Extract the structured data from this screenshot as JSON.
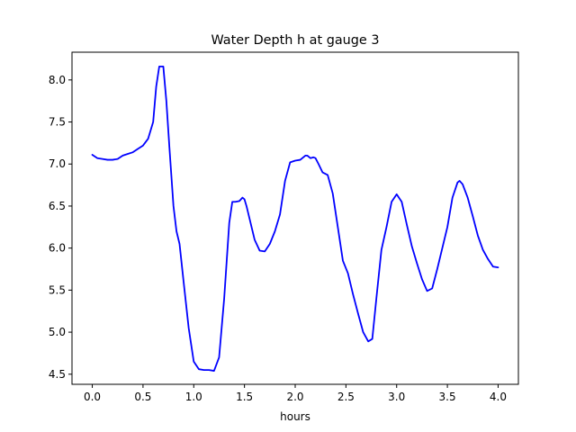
{
  "chart_data": {
    "type": "line",
    "title": "Water Depth h at gauge 3",
    "xlabel": "hours",
    "ylabel": "",
    "xlim": [
      -0.2,
      4.2
    ],
    "ylim": [
      4.38,
      8.33
    ],
    "xticks": [
      0.0,
      0.5,
      1.0,
      1.5,
      2.0,
      2.5,
      3.0,
      3.5,
      4.0
    ],
    "xtick_labels": [
      "0.0",
      "0.5",
      "1.0",
      "1.5",
      "2.0",
      "2.5",
      "3.0",
      "3.5",
      "4.0"
    ],
    "yticks": [
      4.5,
      5.0,
      5.5,
      6.0,
      6.5,
      7.0,
      7.5,
      8.0
    ],
    "ytick_labels": [
      "4.5",
      "5.0",
      "5.5",
      "6.0",
      "6.5",
      "7.0",
      "7.5",
      "8.0"
    ],
    "grid": false,
    "series": [
      {
        "color": "#0000ff",
        "x": [
          0.0,
          0.05,
          0.1,
          0.15,
          0.2,
          0.25,
          0.3,
          0.35,
          0.4,
          0.45,
          0.5,
          0.55,
          0.6,
          0.63,
          0.66,
          0.7,
          0.73,
          0.76,
          0.8,
          0.83,
          0.86,
          0.9,
          0.95,
          1.0,
          1.05,
          1.1,
          1.15,
          1.2,
          1.25,
          1.3,
          1.35,
          1.38,
          1.41,
          1.45,
          1.48,
          1.5,
          1.52,
          1.55,
          1.6,
          1.65,
          1.7,
          1.75,
          1.8,
          1.85,
          1.9,
          1.95,
          2.0,
          2.05,
          2.1,
          2.12,
          2.15,
          2.18,
          2.2,
          2.23,
          2.27,
          2.32,
          2.37,
          2.42,
          2.47,
          2.52,
          2.57,
          2.62,
          2.67,
          2.72,
          2.76,
          2.8,
          2.85,
          2.9,
          2.95,
          3.0,
          3.05,
          3.1,
          3.15,
          3.2,
          3.25,
          3.3,
          3.35,
          3.4,
          3.45,
          3.5,
          3.55,
          3.6,
          3.62,
          3.65,
          3.7,
          3.75,
          3.8,
          3.85,
          3.9,
          3.95,
          4.0
        ],
        "y": [
          7.11,
          7.07,
          7.06,
          7.05,
          7.05,
          7.06,
          7.1,
          7.12,
          7.14,
          7.18,
          7.22,
          7.3,
          7.5,
          7.92,
          8.16,
          8.16,
          7.75,
          7.2,
          6.5,
          6.2,
          6.05,
          5.6,
          5.05,
          4.65,
          4.56,
          4.55,
          4.55,
          4.54,
          4.7,
          5.4,
          6.3,
          6.55,
          6.55,
          6.56,
          6.6,
          6.58,
          6.5,
          6.35,
          6.1,
          5.97,
          5.96,
          6.05,
          6.2,
          6.4,
          6.8,
          7.02,
          7.04,
          7.05,
          7.1,
          7.1,
          7.07,
          7.08,
          7.07,
          7.0,
          6.9,
          6.87,
          6.65,
          6.25,
          5.85,
          5.7,
          5.45,
          5.22,
          5.0,
          4.89,
          4.92,
          5.4,
          5.98,
          6.25,
          6.55,
          6.64,
          6.55,
          6.28,
          6.02,
          5.82,
          5.63,
          5.49,
          5.52,
          5.75,
          6.0,
          6.25,
          6.6,
          6.78,
          6.8,
          6.76,
          6.6,
          6.38,
          6.15,
          5.98,
          5.87,
          5.78,
          5.77
        ]
      }
    ]
  }
}
